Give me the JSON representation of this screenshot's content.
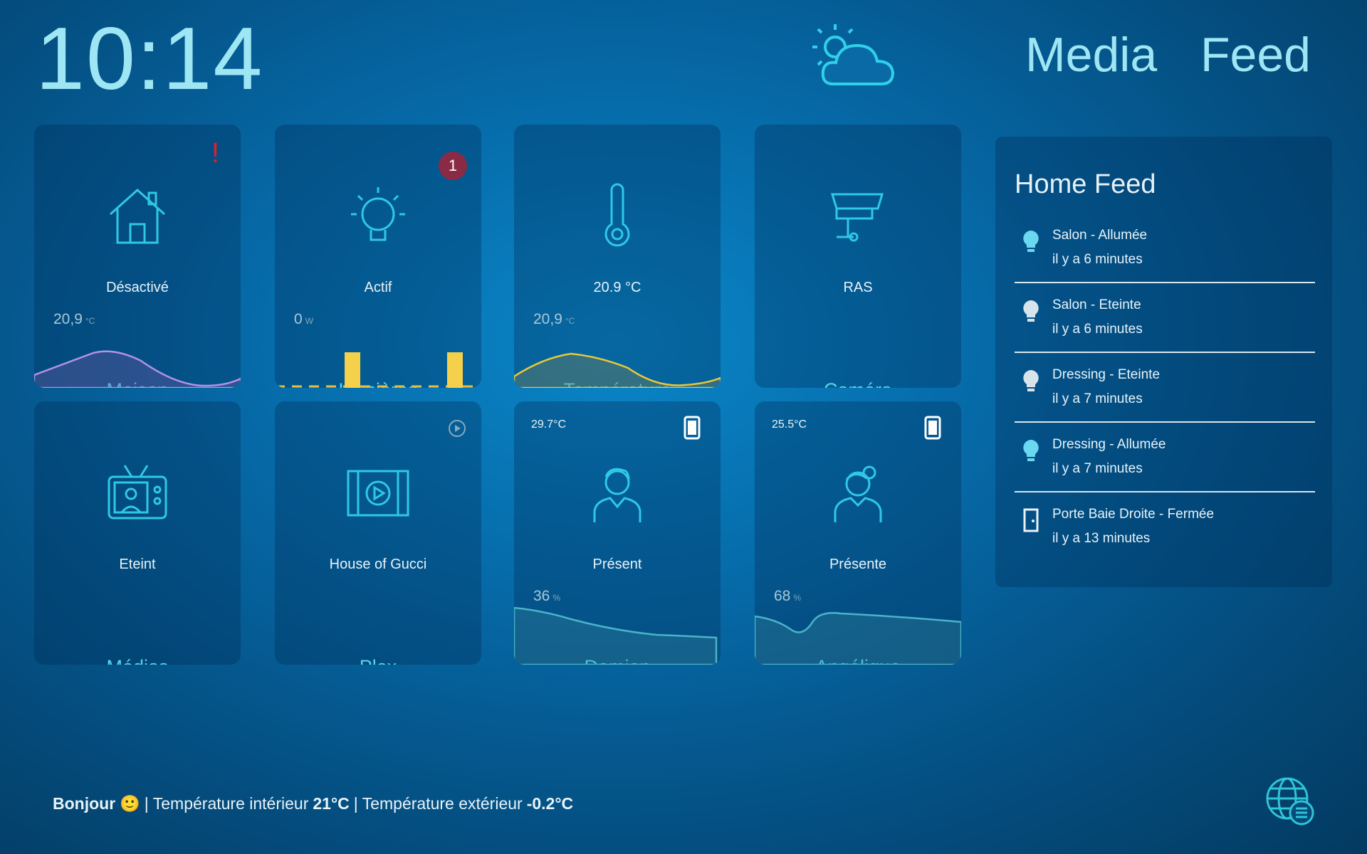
{
  "header": {
    "time": "10:14",
    "nav": [
      "Media",
      "Feed"
    ]
  },
  "tiles": [
    {
      "name": "Maison",
      "status": "Désactivé",
      "sensor": "20,9",
      "unit": "°C",
      "alert": "!"
    },
    {
      "name": "Lumières",
      "status": "Actif",
      "sensor": "0",
      "unit": "W",
      "badge": "1"
    },
    {
      "name": "Température",
      "status": "20.9 °C",
      "sensor": "20,9",
      "unit": "°C"
    },
    {
      "name": "Caméra",
      "status": "RAS"
    },
    {
      "name": "Médias",
      "status": "Eteint"
    },
    {
      "name": "Plex",
      "status": "House of Gucci"
    },
    {
      "name": "Damien",
      "status": "Présent",
      "sensor": "36",
      "unit": "%",
      "temp": "29.7°C"
    },
    {
      "name": "Angélique",
      "status": "Présente",
      "sensor": "68",
      "unit": "%",
      "temp": "25.5°C"
    }
  ],
  "feed": {
    "title": "Home Feed",
    "items": [
      {
        "event": "Salon - Allumée",
        "time": "il y a 6 minutes"
      },
      {
        "event": "Salon - Eteinte",
        "time": "il y a 6 minutes"
      },
      {
        "event": "Dressing - Eteinte",
        "time": "il y a 7 minutes"
      },
      {
        "event": "Dressing - Allumée",
        "time": "il y a 7 minutes"
      },
      {
        "event": "Porte Baie Droite - Fermée",
        "time": "il y a 13 minutes"
      }
    ]
  },
  "footer": [
    {
      "text": "Bonjour",
      "bold": true
    },
    {
      "text": "🙂",
      "bold": false
    },
    {
      "text": "| Température intérieur",
      "bold": false
    },
    {
      "text": "21°C",
      "bold": true
    },
    {
      "text": "| Température extérieur",
      "bold": false
    },
    {
      "text": "-0.2°C",
      "bold": true
    }
  ]
}
